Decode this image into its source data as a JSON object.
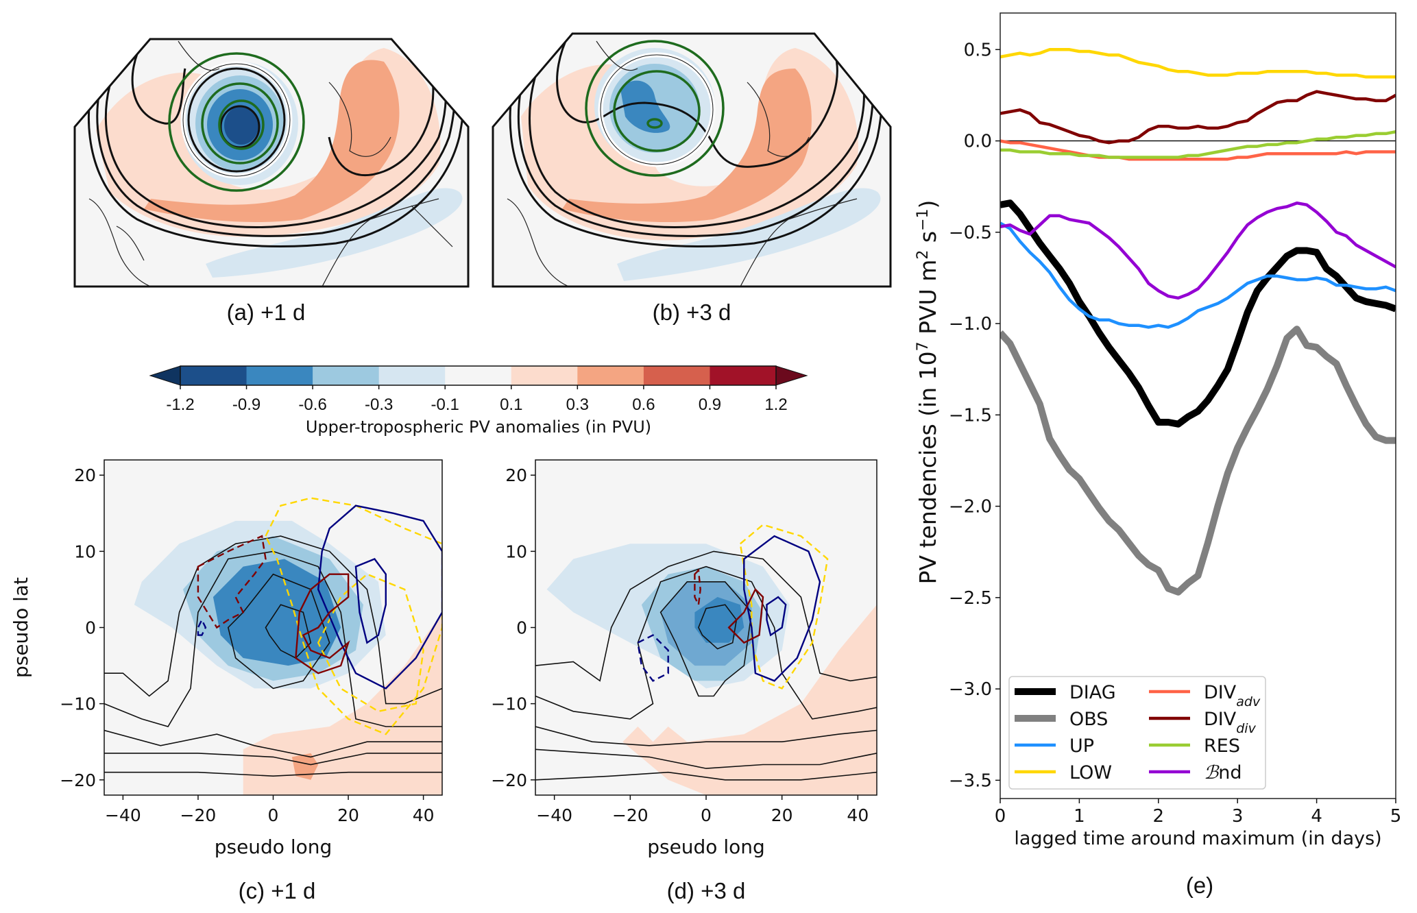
{
  "figure": {
    "panels": {
      "a": {
        "label": "(a) +1 d"
      },
      "b": {
        "label": "(b) +3 d"
      },
      "c": {
        "label": "(c) +1 d"
      },
      "d": {
        "label": "(d) +3 d"
      },
      "e": {
        "label": "(e)"
      }
    },
    "colorbar": {
      "title": "Upper-tropospheric PV anomalies (in PVU)",
      "ticks": [
        "-1.2",
        "-0.9",
        "-0.6",
        "-0.3",
        "-0.1",
        "0.1",
        "0.3",
        "0.6",
        "0.9",
        "1.2"
      ],
      "colors": [
        "#1c4f8a",
        "#3a87bf",
        "#9dc9e0",
        "#d6e6f1",
        "#f5f5f5",
        "#fcdccd",
        "#f4a582",
        "#d6604d",
        "#a11228"
      ],
      "extend_low_color": "#0f3460",
      "extend_high_color": "#6b0a1d"
    },
    "composite_axes": {
      "xlabel": "pseudo long",
      "ylabel": "pseudo lat",
      "xticks": [
        -40,
        -20,
        0,
        20,
        40
      ],
      "yticks": [
        -20,
        -10,
        0,
        10,
        20
      ],
      "xlim": [
        -45,
        45
      ],
      "ylim": [
        -22,
        22
      ]
    }
  },
  "chart_data": {
    "type": "line",
    "title": "",
    "xlabel": "lagged time around maximum (in days)",
    "ylabel": "PV tendencies (in 10^7 PVU m^2 s^-1)",
    "xlim": [
      0,
      5
    ],
    "ylim": [
      -3.6,
      0.7
    ],
    "xticks": [
      0,
      1,
      2,
      3,
      4,
      5
    ],
    "yticks": [
      0.5,
      0.0,
      -0.5,
      -1.0,
      -1.5,
      -2.0,
      -2.5,
      -3.0,
      -3.5
    ],
    "ytick_labels": [
      "0.5",
      "0.0",
      "−0.5",
      "−1.0",
      "−1.5",
      "−2.0",
      "−2.5",
      "−3.0",
      "−3.5"
    ],
    "zero_line": true,
    "legend_position": "lower-left",
    "x": [
      0,
      0.125,
      0.25,
      0.375,
      0.5,
      0.625,
      0.75,
      0.875,
      1,
      1.125,
      1.25,
      1.375,
      1.5,
      1.625,
      1.75,
      1.875,
      2,
      2.125,
      2.25,
      2.375,
      2.5,
      2.625,
      2.75,
      2.875,
      3,
      3.125,
      3.25,
      3.375,
      3.5,
      3.625,
      3.75,
      3.875,
      4,
      4.125,
      4.25,
      4.375,
      4.5,
      4.625,
      4.75,
      4.875,
      5
    ],
    "series": [
      {
        "name": "DIAG",
        "color": "#000000",
        "width": "thick",
        "values": [
          -0.35,
          -0.34,
          -0.4,
          -0.48,
          -0.56,
          -0.63,
          -0.7,
          -0.78,
          -0.88,
          -0.96,
          -1.05,
          -1.13,
          -1.2,
          -1.27,
          -1.35,
          -1.45,
          -1.54,
          -1.54,
          -1.55,
          -1.51,
          -1.48,
          -1.42,
          -1.34,
          -1.25,
          -1.1,
          -0.94,
          -0.82,
          -0.75,
          -0.69,
          -0.63,
          -0.6,
          -0.6,
          -0.61,
          -0.7,
          -0.74,
          -0.8,
          -0.86,
          -0.88,
          -0.89,
          -0.9,
          -0.92
        ]
      },
      {
        "name": "OBS",
        "color": "#808080",
        "width": "thick",
        "values": [
          -1.05,
          -1.11,
          -1.22,
          -1.33,
          -1.44,
          -1.63,
          -1.72,
          -1.8,
          -1.85,
          -1.93,
          -2.01,
          -2.08,
          -2.13,
          -2.2,
          -2.27,
          -2.32,
          -2.35,
          -2.45,
          -2.47,
          -2.42,
          -2.38,
          -2.2,
          -2.0,
          -1.82,
          -1.68,
          -1.57,
          -1.47,
          -1.36,
          -1.23,
          -1.08,
          -1.03,
          -1.12,
          -1.13,
          -1.18,
          -1.22,
          -1.34,
          -1.45,
          -1.55,
          -1.62,
          -1.64,
          -1.64
        ]
      },
      {
        "name": "UP",
        "color": "#1e90ff",
        "width": "normal",
        "values": [
          -0.45,
          -0.48,
          -0.55,
          -0.61,
          -0.66,
          -0.72,
          -0.8,
          -0.87,
          -0.92,
          -0.96,
          -0.98,
          -0.98,
          -1.0,
          -1.01,
          -1.01,
          -1.02,
          -1.01,
          -1.02,
          -1.0,
          -0.97,
          -0.93,
          -0.91,
          -0.89,
          -0.86,
          -0.82,
          -0.78,
          -0.76,
          -0.74,
          -0.74,
          -0.75,
          -0.76,
          -0.76,
          -0.75,
          -0.76,
          -0.79,
          -0.79,
          -0.8,
          -0.81,
          -0.81,
          -0.8,
          -0.82
        ]
      },
      {
        "name": "LOW",
        "color": "#ffd700",
        "width": "normal",
        "values": [
          0.46,
          0.47,
          0.48,
          0.47,
          0.48,
          0.5,
          0.5,
          0.5,
          0.49,
          0.49,
          0.48,
          0.47,
          0.47,
          0.45,
          0.43,
          0.42,
          0.41,
          0.39,
          0.38,
          0.38,
          0.37,
          0.36,
          0.36,
          0.36,
          0.37,
          0.37,
          0.37,
          0.38,
          0.38,
          0.38,
          0.38,
          0.38,
          0.37,
          0.37,
          0.36,
          0.36,
          0.36,
          0.35,
          0.35,
          0.35,
          0.35
        ]
      },
      {
        "name": "DIV_adv",
        "label_main": "DIV",
        "label_sub": "adv",
        "color": "#ff6347",
        "width": "normal",
        "values": [
          0.0,
          -0.01,
          -0.01,
          -0.02,
          -0.03,
          -0.04,
          -0.05,
          -0.06,
          -0.07,
          -0.08,
          -0.09,
          -0.09,
          -0.09,
          -0.1,
          -0.1,
          -0.1,
          -0.1,
          -0.1,
          -0.1,
          -0.1,
          -0.1,
          -0.1,
          -0.1,
          -0.1,
          -0.09,
          -0.09,
          -0.08,
          -0.07,
          -0.07,
          -0.07,
          -0.07,
          -0.07,
          -0.07,
          -0.07,
          -0.07,
          -0.06,
          -0.07,
          -0.06,
          -0.06,
          -0.06,
          -0.06
        ]
      },
      {
        "name": "DIV_div",
        "label_main": "DIV",
        "label_sub": "div",
        "color": "#800000",
        "width": "normal",
        "values": [
          0.15,
          0.16,
          0.17,
          0.15,
          0.1,
          0.09,
          0.07,
          0.05,
          0.03,
          0.02,
          0.0,
          -0.01,
          0.0,
          0.0,
          0.02,
          0.06,
          0.08,
          0.08,
          0.07,
          0.07,
          0.08,
          0.07,
          0.07,
          0.08,
          0.1,
          0.11,
          0.15,
          0.18,
          0.21,
          0.22,
          0.22,
          0.25,
          0.27,
          0.26,
          0.25,
          0.24,
          0.23,
          0.23,
          0.22,
          0.22,
          0.25
        ]
      },
      {
        "name": "RES",
        "color": "#9acd32",
        "width": "normal",
        "values": [
          -0.05,
          -0.05,
          -0.06,
          -0.06,
          -0.06,
          -0.07,
          -0.07,
          -0.07,
          -0.08,
          -0.08,
          -0.08,
          -0.09,
          -0.09,
          -0.09,
          -0.09,
          -0.09,
          -0.09,
          -0.09,
          -0.09,
          -0.08,
          -0.08,
          -0.07,
          -0.06,
          -0.05,
          -0.04,
          -0.03,
          -0.03,
          -0.02,
          -0.02,
          -0.01,
          -0.01,
          0.0,
          0.01,
          0.01,
          0.02,
          0.02,
          0.03,
          0.03,
          0.04,
          0.04,
          0.05
        ]
      },
      {
        "name": "Bnd",
        "label_main": "ℬnd",
        "color": "#9400d3",
        "width": "normal",
        "values": [
          -0.47,
          -0.46,
          -0.49,
          -0.51,
          -0.46,
          -0.41,
          -0.41,
          -0.43,
          -0.44,
          -0.45,
          -0.49,
          -0.53,
          -0.58,
          -0.64,
          -0.7,
          -0.78,
          -0.82,
          -0.85,
          -0.86,
          -0.84,
          -0.81,
          -0.75,
          -0.68,
          -0.61,
          -0.53,
          -0.46,
          -0.42,
          -0.39,
          -0.37,
          -0.36,
          -0.34,
          -0.35,
          -0.39,
          -0.44,
          -0.5,
          -0.52,
          -0.57,
          -0.6,
          -0.63,
          -0.66,
          -0.69
        ]
      }
    ]
  }
}
